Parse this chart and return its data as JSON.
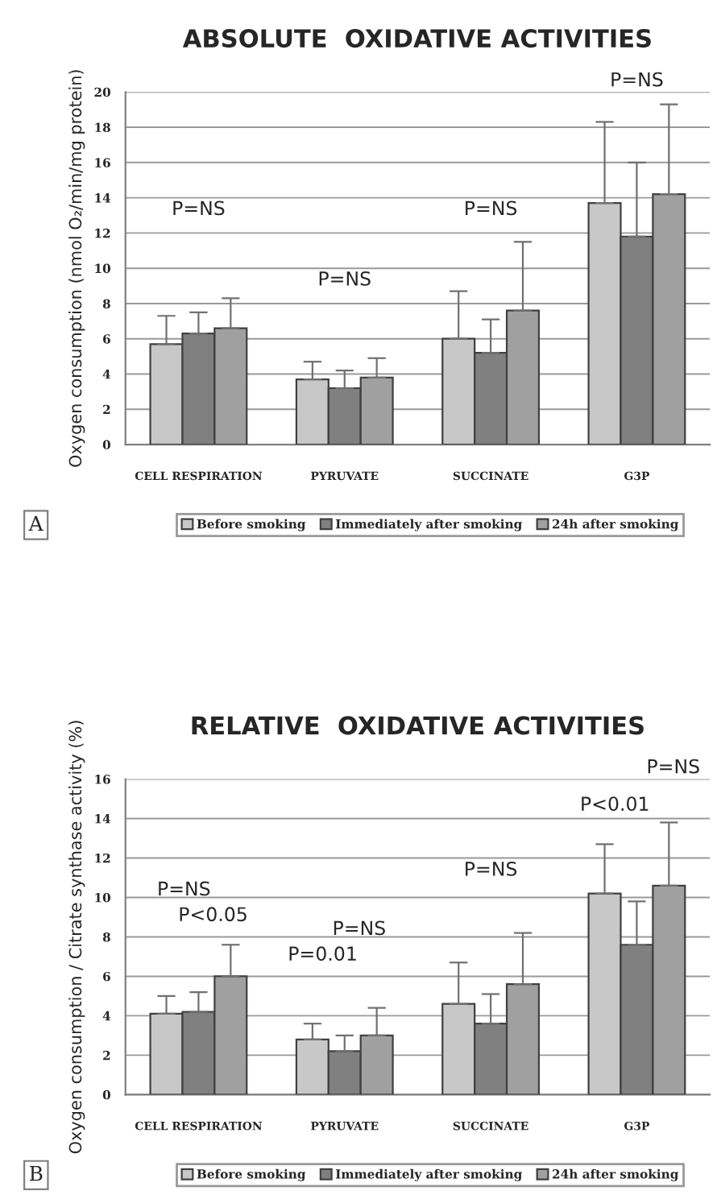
{
  "chart_data": [
    {
      "type": "bar",
      "title": "ABSOLUTE  OXIDATIVE ACTIVITIES",
      "ylabel": "Oxygen consumption (nmol O₂/min/mg protein)",
      "categories": [
        "CELL RESPIRATION",
        "PYRUVATE",
        "SUCCINATE",
        "G3P"
      ],
      "series": [
        {
          "name": "Before smoking",
          "color": "#c8c8c8",
          "values": [
            5.7,
            3.7,
            6.0,
            13.7
          ],
          "errors": [
            [
              5.7,
              7.3
            ],
            [
              3.7,
              4.7
            ],
            [
              6.0,
              8.7
            ],
            [
              13.7,
              18.3
            ]
          ]
        },
        {
          "name": "Immediately after smoking",
          "color": "#808080",
          "values": [
            6.3,
            3.2,
            5.2,
            11.8
          ],
          "errors": [
            [
              6.3,
              7.5
            ],
            [
              3.2,
              4.2
            ],
            [
              5.2,
              7.1
            ],
            [
              11.8,
              16.0
            ]
          ]
        },
        {
          "name": "24h after smoking",
          "color": "#a0a0a0",
          "values": [
            6.6,
            3.8,
            7.6,
            14.2
          ],
          "errors": [
            [
              6.6,
              8.3
            ],
            [
              3.8,
              4.9
            ],
            [
              7.6,
              11.5
            ],
            [
              14.2,
              19.3
            ]
          ]
        }
      ],
      "ylim": [
        0,
        20
      ],
      "yticks": [
        0,
        2,
        4,
        6,
        8,
        10,
        12,
        14,
        16,
        18,
        20
      ],
      "grid": "y",
      "legend": "bottom",
      "annotations": [
        "P=NS",
        "P=NS",
        "P=NS",
        "P=NS",
        "A"
      ]
    },
    {
      "type": "bar",
      "title": "RELATIVE  OXIDATIVE ACTIVITIES",
      "ylabel": "Oxygen consumption / Citrate synthase activity (%)",
      "categories": [
        "CELL RESPIRATION",
        "PYRUVATE",
        "SUCCINATE",
        "G3P"
      ],
      "series": [
        {
          "name": "Before smoking",
          "color": "#c8c8c8",
          "values": [
            4.1,
            2.8,
            4.6,
            10.2
          ],
          "errors": [
            [
              4.1,
              5.0
            ],
            [
              2.8,
              3.6
            ],
            [
              4.6,
              6.7
            ],
            [
              10.2,
              12.7
            ]
          ]
        },
        {
          "name": "Immediately after smoking",
          "color": "#808080",
          "values": [
            4.2,
            2.2,
            3.6,
            7.6
          ],
          "errors": [
            [
              4.2,
              5.2
            ],
            [
              2.2,
              3.0
            ],
            [
              3.6,
              5.1
            ],
            [
              7.6,
              9.8
            ]
          ]
        },
        {
          "name": "24h after smoking",
          "color": "#a0a0a0",
          "values": [
            6.0,
            3.0,
            5.6,
            10.6
          ],
          "errors": [
            [
              6.0,
              7.6
            ],
            [
              3.0,
              4.4
            ],
            [
              5.6,
              8.2
            ],
            [
              10.6,
              13.8
            ]
          ]
        }
      ],
      "ylim": [
        0,
        16
      ],
      "yticks": [
        0,
        2,
        4,
        6,
        8,
        10,
        12,
        14,
        16
      ],
      "grid": "y",
      "legend": "bottom",
      "annotations": [
        "P=NS",
        "P<0.05",
        "P=NS",
        "P=0.01",
        "P=NS",
        "P=NS",
        "P<0.01",
        "B"
      ]
    }
  ]
}
